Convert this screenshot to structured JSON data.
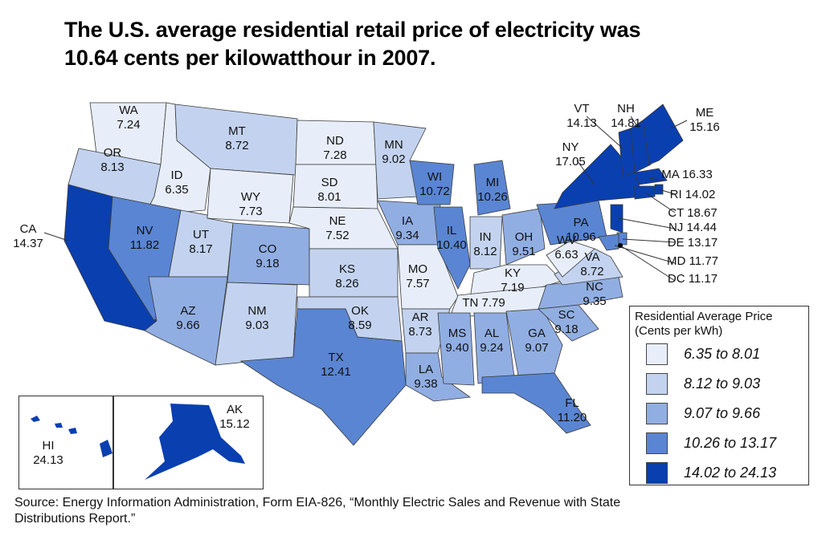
{
  "title_line1": "The U.S. average residential retail price of electricity was",
  "title_line2": "10.64 cents per kilowatthour in 2007.",
  "source_line1": "Source: Energy Information Administration, Form EIA-826, “Monthly Electric Sales and Revenue with State",
  "source_line2": "Distributions Report.”",
  "legend": {
    "title_line1": "Residential Average Price",
    "title_line2": "(Cents per kWh)",
    "bins": [
      {
        "label": "6.35 to 8.01",
        "min": 6.35,
        "max": 8.01,
        "color": "#e8eef9"
      },
      {
        "label": "8.12 to 9.03",
        "min": 8.12,
        "max": 9.03,
        "color": "#c3d3ef"
      },
      {
        "label": "9.07 to 9.66",
        "min": 9.07,
        "max": 9.66,
        "color": "#91aee3"
      },
      {
        "label": "10.26 to 13.17",
        "min": 10.26,
        "max": 13.17,
        "color": "#5a85d2"
      },
      {
        "label": "14.02 to 24.13",
        "min": 14.02,
        "max": 24.13,
        "color": "#0a3fb0"
      }
    ]
  },
  "chart_data": {
    "type": "choropleth",
    "title": "The U.S. average residential retail price of electricity was 10.64 cents per kilowatthour in 2007.",
    "unit": "Cents per kWh",
    "national_average": 10.64,
    "year": 2007,
    "states": [
      {
        "abbr": "WA",
        "value": 7.24
      },
      {
        "abbr": "OR",
        "value": 8.13
      },
      {
        "abbr": "CA",
        "value": 14.37
      },
      {
        "abbr": "ID",
        "value": 6.35
      },
      {
        "abbr": "NV",
        "value": 11.82
      },
      {
        "abbr": "MT",
        "value": 8.72
      },
      {
        "abbr": "WY",
        "value": 7.73
      },
      {
        "abbr": "UT",
        "value": 8.17
      },
      {
        "abbr": "AZ",
        "value": 9.66
      },
      {
        "abbr": "CO",
        "value": 9.18
      },
      {
        "abbr": "NM",
        "value": 9.03
      },
      {
        "abbr": "ND",
        "value": 7.28
      },
      {
        "abbr": "SD",
        "value": 8.01
      },
      {
        "abbr": "NE",
        "value": 7.52
      },
      {
        "abbr": "KS",
        "value": 8.26
      },
      {
        "abbr": "OK",
        "value": 8.59
      },
      {
        "abbr": "TX",
        "value": 12.41
      },
      {
        "abbr": "MN",
        "value": 9.02
      },
      {
        "abbr": "IA",
        "value": 9.34
      },
      {
        "abbr": "MO",
        "value": 7.57
      },
      {
        "abbr": "AR",
        "value": 8.73
      },
      {
        "abbr": "LA",
        "value": 9.38
      },
      {
        "abbr": "WI",
        "value": 10.72
      },
      {
        "abbr": "IL",
        "value": 10.4
      },
      {
        "abbr": "MI",
        "value": 10.26
      },
      {
        "abbr": "IN",
        "value": 8.12
      },
      {
        "abbr": "OH",
        "value": 9.51
      },
      {
        "abbr": "KY",
        "value": 7.19
      },
      {
        "abbr": "TN",
        "value": 7.79
      },
      {
        "abbr": "MS",
        "value": 9.4
      },
      {
        "abbr": "AL",
        "value": 9.24
      },
      {
        "abbr": "GA",
        "value": 9.07
      },
      {
        "abbr": "FL",
        "value": 11.2
      },
      {
        "abbr": "SC",
        "value": 9.18
      },
      {
        "abbr": "NC",
        "value": 9.35
      },
      {
        "abbr": "VA",
        "value": 8.72
      },
      {
        "abbr": "WV",
        "value": 6.63
      },
      {
        "abbr": "PA",
        "value": 10.96
      },
      {
        "abbr": "NY",
        "value": 17.05
      },
      {
        "abbr": "VT",
        "value": 14.13
      },
      {
        "abbr": "NH",
        "value": 14.81
      },
      {
        "abbr": "ME",
        "value": 15.16
      },
      {
        "abbr": "MA",
        "value": 16.33
      },
      {
        "abbr": "RI",
        "value": 14.02
      },
      {
        "abbr": "CT",
        "value": 18.67
      },
      {
        "abbr": "NJ",
        "value": 14.44
      },
      {
        "abbr": "DE",
        "value": 13.17
      },
      {
        "abbr": "MD",
        "value": 11.77
      },
      {
        "abbr": "DC",
        "value": 11.17
      },
      {
        "abbr": "AK",
        "value": 15.12
      },
      {
        "abbr": "HI",
        "value": 24.13
      }
    ]
  }
}
